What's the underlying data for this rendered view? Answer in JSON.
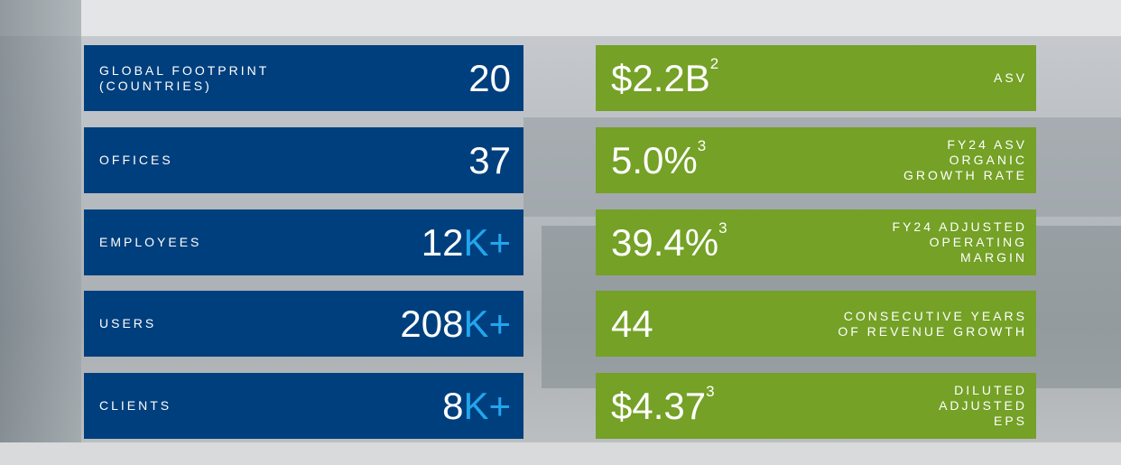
{
  "left_cards": [
    {
      "label_lines": [
        "GLOBAL FOOTPRINT",
        "(COUNTRIES)"
      ],
      "value": "20"
    },
    {
      "label_lines": [
        "OFFICES"
      ],
      "value": "37"
    },
    {
      "label_lines": [
        "EMPLOYEES"
      ],
      "value": "12",
      "suffix": "K+"
    },
    {
      "label_lines": [
        "USERS"
      ],
      "value": "208",
      "suffix": "K+"
    },
    {
      "label_lines": [
        "CLIENTS"
      ],
      "value": "8",
      "suffix": "K+"
    }
  ],
  "right_cards": [
    {
      "value": "$2.2B",
      "footnote": "2",
      "label_lines": [
        "ASV"
      ]
    },
    {
      "value": "5.0%",
      "footnote": "3",
      "label_lines": [
        "FY24 ASV",
        "ORGANIC",
        "GROWTH RATE"
      ]
    },
    {
      "value": "39.4%",
      "footnote": "3",
      "label_lines": [
        "FY24 ADJUSTED",
        "OPERATING",
        "MARGIN"
      ]
    },
    {
      "value": "44",
      "label_lines": [
        "CONSECUTIVE YEARS",
        "OF REVENUE GROWTH"
      ]
    },
    {
      "value": "$4.37",
      "footnote": "3",
      "label_lines": [
        "DILUTED",
        "ADJUSTED",
        "EPS"
      ]
    }
  ]
}
